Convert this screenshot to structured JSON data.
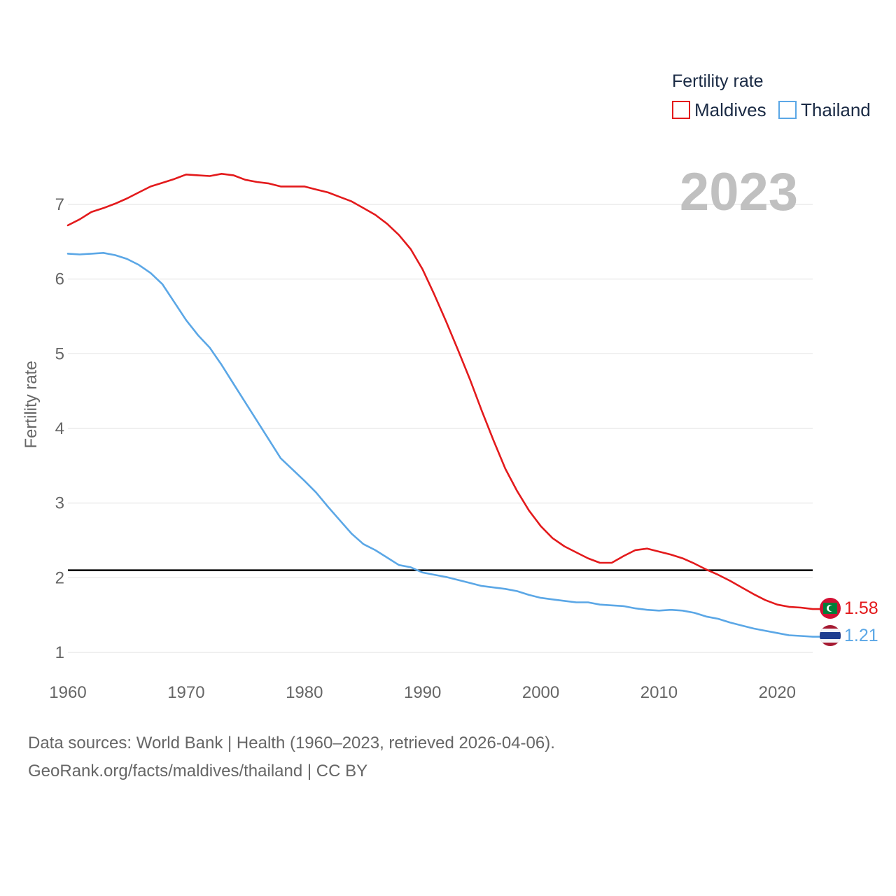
{
  "chart_data": {
    "type": "line",
    "ylabel": "Fertility rate",
    "xlim": [
      1960,
      2023
    ],
    "ylim": [
      0.7,
      7.8
    ],
    "x_ticks": [
      "1960",
      "1970",
      "1980",
      "1990",
      "2000",
      "2010",
      "2020"
    ],
    "y_ticks": [
      "1",
      "2",
      "3",
      "4",
      "5",
      "6",
      "7"
    ],
    "legend_title": "Fertility rate",
    "year_label": "2023",
    "reference_line": 2.1,
    "x": [
      1960,
      1961,
      1962,
      1963,
      1964,
      1965,
      1966,
      1967,
      1968,
      1969,
      1970,
      1971,
      1972,
      1973,
      1974,
      1975,
      1976,
      1977,
      1978,
      1979,
      1980,
      1981,
      1982,
      1983,
      1984,
      1985,
      1986,
      1987,
      1988,
      1989,
      1990,
      1991,
      1992,
      1993,
      1994,
      1995,
      1996,
      1997,
      1998,
      1999,
      2000,
      2001,
      2002,
      2003,
      2004,
      2005,
      2006,
      2007,
      2008,
      2009,
      2010,
      2011,
      2012,
      2013,
      2014,
      2015,
      2016,
      2017,
      2018,
      2019,
      2020,
      2021,
      2022,
      2023
    ],
    "series": [
      {
        "name": "Maldives",
        "color": "#e31a1c",
        "end_label": "1.58",
        "values": [
          6.72,
          6.8,
          6.9,
          6.95,
          7.01,
          7.08,
          7.16,
          7.24,
          7.29,
          7.34,
          7.4,
          7.39,
          7.38,
          7.41,
          7.39,
          7.33,
          7.3,
          7.28,
          7.24,
          7.24,
          7.24,
          7.2,
          7.16,
          7.1,
          7.04,
          6.95,
          6.86,
          6.74,
          6.59,
          6.4,
          6.13,
          5.79,
          5.43,
          5.05,
          4.66,
          4.24,
          3.84,
          3.46,
          3.16,
          2.9,
          2.69,
          2.53,
          2.42,
          2.34,
          2.26,
          2.2,
          2.2,
          2.29,
          2.37,
          2.39,
          2.35,
          2.31,
          2.26,
          2.19,
          2.11,
          2.04,
          1.96,
          1.87,
          1.78,
          1.7,
          1.64,
          1.61,
          1.6,
          1.58
        ]
      },
      {
        "name": "Thailand",
        "color": "#5ba7e6",
        "end_label": "1.21",
        "values": [
          6.34,
          6.33,
          6.34,
          6.35,
          6.32,
          6.27,
          6.19,
          6.08,
          5.93,
          5.69,
          5.45,
          5.25,
          5.08,
          4.85,
          4.6,
          4.35,
          4.1,
          3.85,
          3.6,
          3.45,
          3.3,
          3.14,
          2.95,
          2.77,
          2.59,
          2.45,
          2.37,
          2.27,
          2.17,
          2.14,
          2.07,
          2.04,
          2.01,
          1.97,
          1.93,
          1.89,
          1.87,
          1.85,
          1.82,
          1.77,
          1.73,
          1.71,
          1.69,
          1.67,
          1.67,
          1.64,
          1.63,
          1.62,
          1.59,
          1.57,
          1.56,
          1.57,
          1.56,
          1.53,
          1.48,
          1.45,
          1.4,
          1.36,
          1.32,
          1.29,
          1.26,
          1.23,
          1.22,
          1.21
        ]
      }
    ]
  },
  "footer": {
    "line1": "Data sources: World Bank | Health (1960–2023, retrieved 2026-04-06).",
    "line2": "GeoRank.org/facts/maldives/thailand | CC BY"
  }
}
